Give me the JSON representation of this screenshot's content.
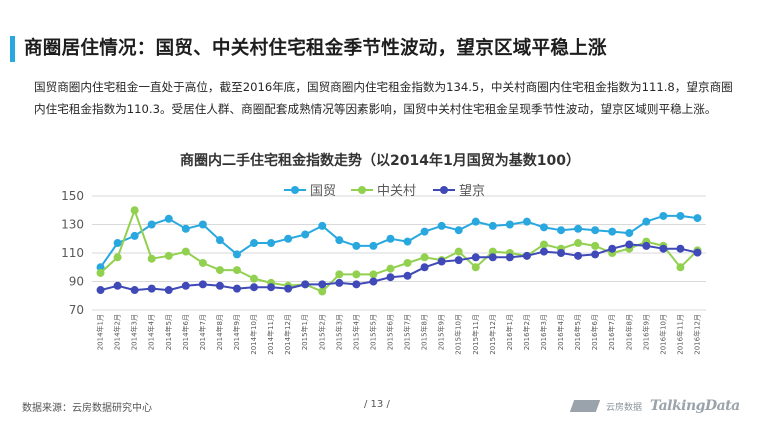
{
  "header": {
    "title": "商圈居住情况：国贸、中关村住宅租金季节性波动，望京区域平稳上涨",
    "accent_color": "#29a8e0"
  },
  "summary": "国贸商圈内住宅租金一直处于高位，截至2016年底，国贸商圈内住宅租金指数为134.5，中关村商圈内住宅租金指数为111.8，望京商圈内住宅租金指数为110.3。受居住人群、商圈配套成熟情况等因素影响，国贸中关村住宅租金呈现季节性波动，望京区域则平稳上涨。",
  "footer": {
    "source": "数据来源：云房数据研究中心",
    "page": "/ 13 /",
    "logo_text_cn": "云房数据",
    "logo_text_en": "TalkingData"
  },
  "chart_data": {
    "type": "line",
    "title": "商圈内二手住宅租金指数走势（以2014年1月国贸为基数100）",
    "xlabel": "",
    "ylabel": "",
    "ylim": [
      70,
      150
    ],
    "yticks": [
      70,
      90,
      110,
      130,
      150
    ],
    "grid": true,
    "legend_position": "top",
    "x": [
      "2014年1月",
      "2014年2月",
      "2014年3月",
      "2014年4月",
      "2014年5月",
      "2014年6月",
      "2014年7月",
      "2014年8月",
      "2014年9月",
      "2014年10月",
      "2014年11月",
      "2014年12月",
      "2015年1月",
      "2015年2月",
      "2015年3月",
      "2015年4月",
      "2015年5月",
      "2015年6月",
      "2015年7月",
      "2015年8月",
      "2015年9月",
      "2015年10月",
      "2015年11月",
      "2015年12月",
      "2016年1月",
      "2016年2月",
      "2016年3月",
      "2016年4月",
      "2016年5月",
      "2016年6月",
      "2016年7月",
      "2016年8月",
      "2016年9月",
      "2016年10月",
      "2016年11月",
      "2016年12月"
    ],
    "series": [
      {
        "name": "国贸",
        "color": "#29a8e0",
        "values": [
          100,
          117,
          122,
          130,
          134,
          127,
          130,
          119,
          109,
          117,
          117,
          120,
          123,
          129,
          119,
          115,
          115,
          120,
          118,
          125,
          129,
          126,
          132,
          129,
          130,
          132,
          128,
          126,
          127,
          126,
          125,
          124,
          132,
          136,
          136,
          134.5
        ]
      },
      {
        "name": "中关村",
        "color": "#92d050",
        "values": [
          96,
          107,
          140,
          106,
          108,
          111,
          103,
          98,
          98,
          92,
          89,
          87,
          88,
          83,
          95,
          95,
          95,
          99,
          103,
          107,
          105,
          111,
          100,
          111,
          110,
          108,
          116,
          113,
          117,
          115,
          110,
          113,
          118,
          115,
          100,
          111.8
        ]
      },
      {
        "name": "望京",
        "color": "#3f49b7",
        "values": [
          84,
          87,
          84,
          85,
          84,
          87,
          88,
          87,
          85,
          86,
          86,
          85,
          88,
          88,
          89,
          88,
          90,
          93,
          94,
          100,
          104,
          105,
          107,
          107,
          107,
          108,
          111,
          110,
          108,
          109,
          113,
          116,
          115,
          113,
          113,
          110.3
        ]
      }
    ]
  }
}
